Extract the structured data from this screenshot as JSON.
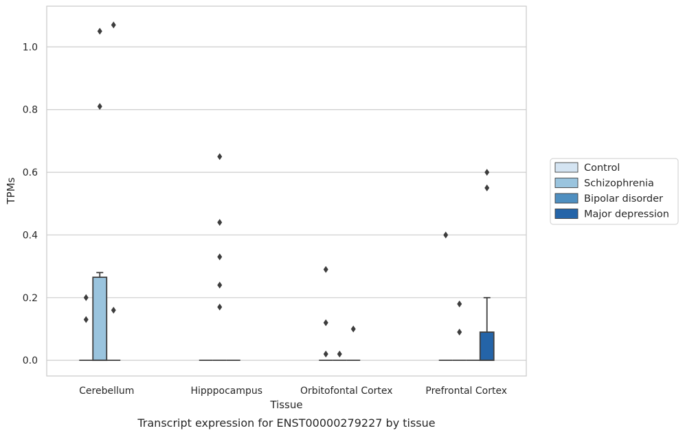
{
  "chart_data": {
    "type": "box",
    "title": "",
    "caption": "Transcript expression for ENST00000279227 by tissue",
    "xlabel": "Tissue",
    "ylabel": "TPMs",
    "ylim": [
      -0.05,
      1.13
    ],
    "yticks": [
      "0.0",
      "0.2",
      "0.4",
      "0.6",
      "0.8",
      "1.0"
    ],
    "grid": true,
    "legend_position": "right",
    "categories": [
      "Cerebellum",
      "Hipppocampus",
      "Orbitofontal Cortex",
      "Prefrontal Cortex"
    ],
    "series": [
      {
        "name": "Control",
        "color": "#d4e4f2",
        "boxes": [
          {
            "q1": 0,
            "median": 0,
            "q3": 0,
            "whislo": 0,
            "whishi": 0,
            "fliers": [
              0.13,
              0.2
            ]
          },
          {
            "q1": 0,
            "median": 0,
            "q3": 0,
            "whislo": 0,
            "whishi": 0,
            "fliers": []
          },
          {
            "q1": 0,
            "median": 0,
            "q3": 0,
            "whislo": 0,
            "whishi": 0,
            "fliers": [
              0.02,
              0.12,
              0.29
            ]
          },
          {
            "q1": 0,
            "median": 0,
            "q3": 0,
            "whislo": 0,
            "whishi": 0,
            "fliers": [
              0.4
            ]
          }
        ]
      },
      {
        "name": "Schizophrenia",
        "color": "#9ac4de",
        "boxes": [
          {
            "q1": 0,
            "median": 0,
            "q3": 0.265,
            "whislo": 0,
            "whishi": 0.28,
            "fliers": [
              0.81,
              1.05
            ]
          },
          {
            "q1": 0,
            "median": 0,
            "q3": 0,
            "whislo": 0,
            "whishi": 0,
            "fliers": [
              0.17,
              0.24,
              0.33,
              0.44,
              0.65
            ]
          },
          {
            "q1": 0,
            "median": 0,
            "q3": 0,
            "whislo": 0,
            "whishi": 0,
            "fliers": [
              0.02
            ]
          },
          {
            "q1": 0,
            "median": 0,
            "q3": 0,
            "whislo": 0,
            "whishi": 0,
            "fliers": [
              0.09,
              0.18
            ]
          }
        ]
      },
      {
        "name": "Bipolar disorder",
        "color": "#4f8fc0",
        "boxes": [
          {
            "q1": 0,
            "median": 0,
            "q3": 0,
            "whislo": 0,
            "whishi": 0,
            "fliers": [
              0.16,
              1.07
            ]
          },
          {
            "q1": 0,
            "median": 0,
            "q3": 0,
            "whislo": 0,
            "whishi": 0,
            "fliers": []
          },
          {
            "q1": 0,
            "median": 0,
            "q3": 0,
            "whislo": 0,
            "whishi": 0,
            "fliers": [
              0.1
            ]
          },
          {
            "q1": 0,
            "median": 0,
            "q3": 0,
            "whislo": 0,
            "whishi": 0,
            "fliers": []
          }
        ]
      },
      {
        "name": "Major depression",
        "color": "#2464a8",
        "boxes": [
          null,
          null,
          null,
          {
            "q1": 0,
            "median": 0,
            "q3": 0.09,
            "whislo": 0,
            "whishi": 0.2,
            "fliers": [
              0.55,
              0.6
            ]
          }
        ]
      }
    ]
  }
}
